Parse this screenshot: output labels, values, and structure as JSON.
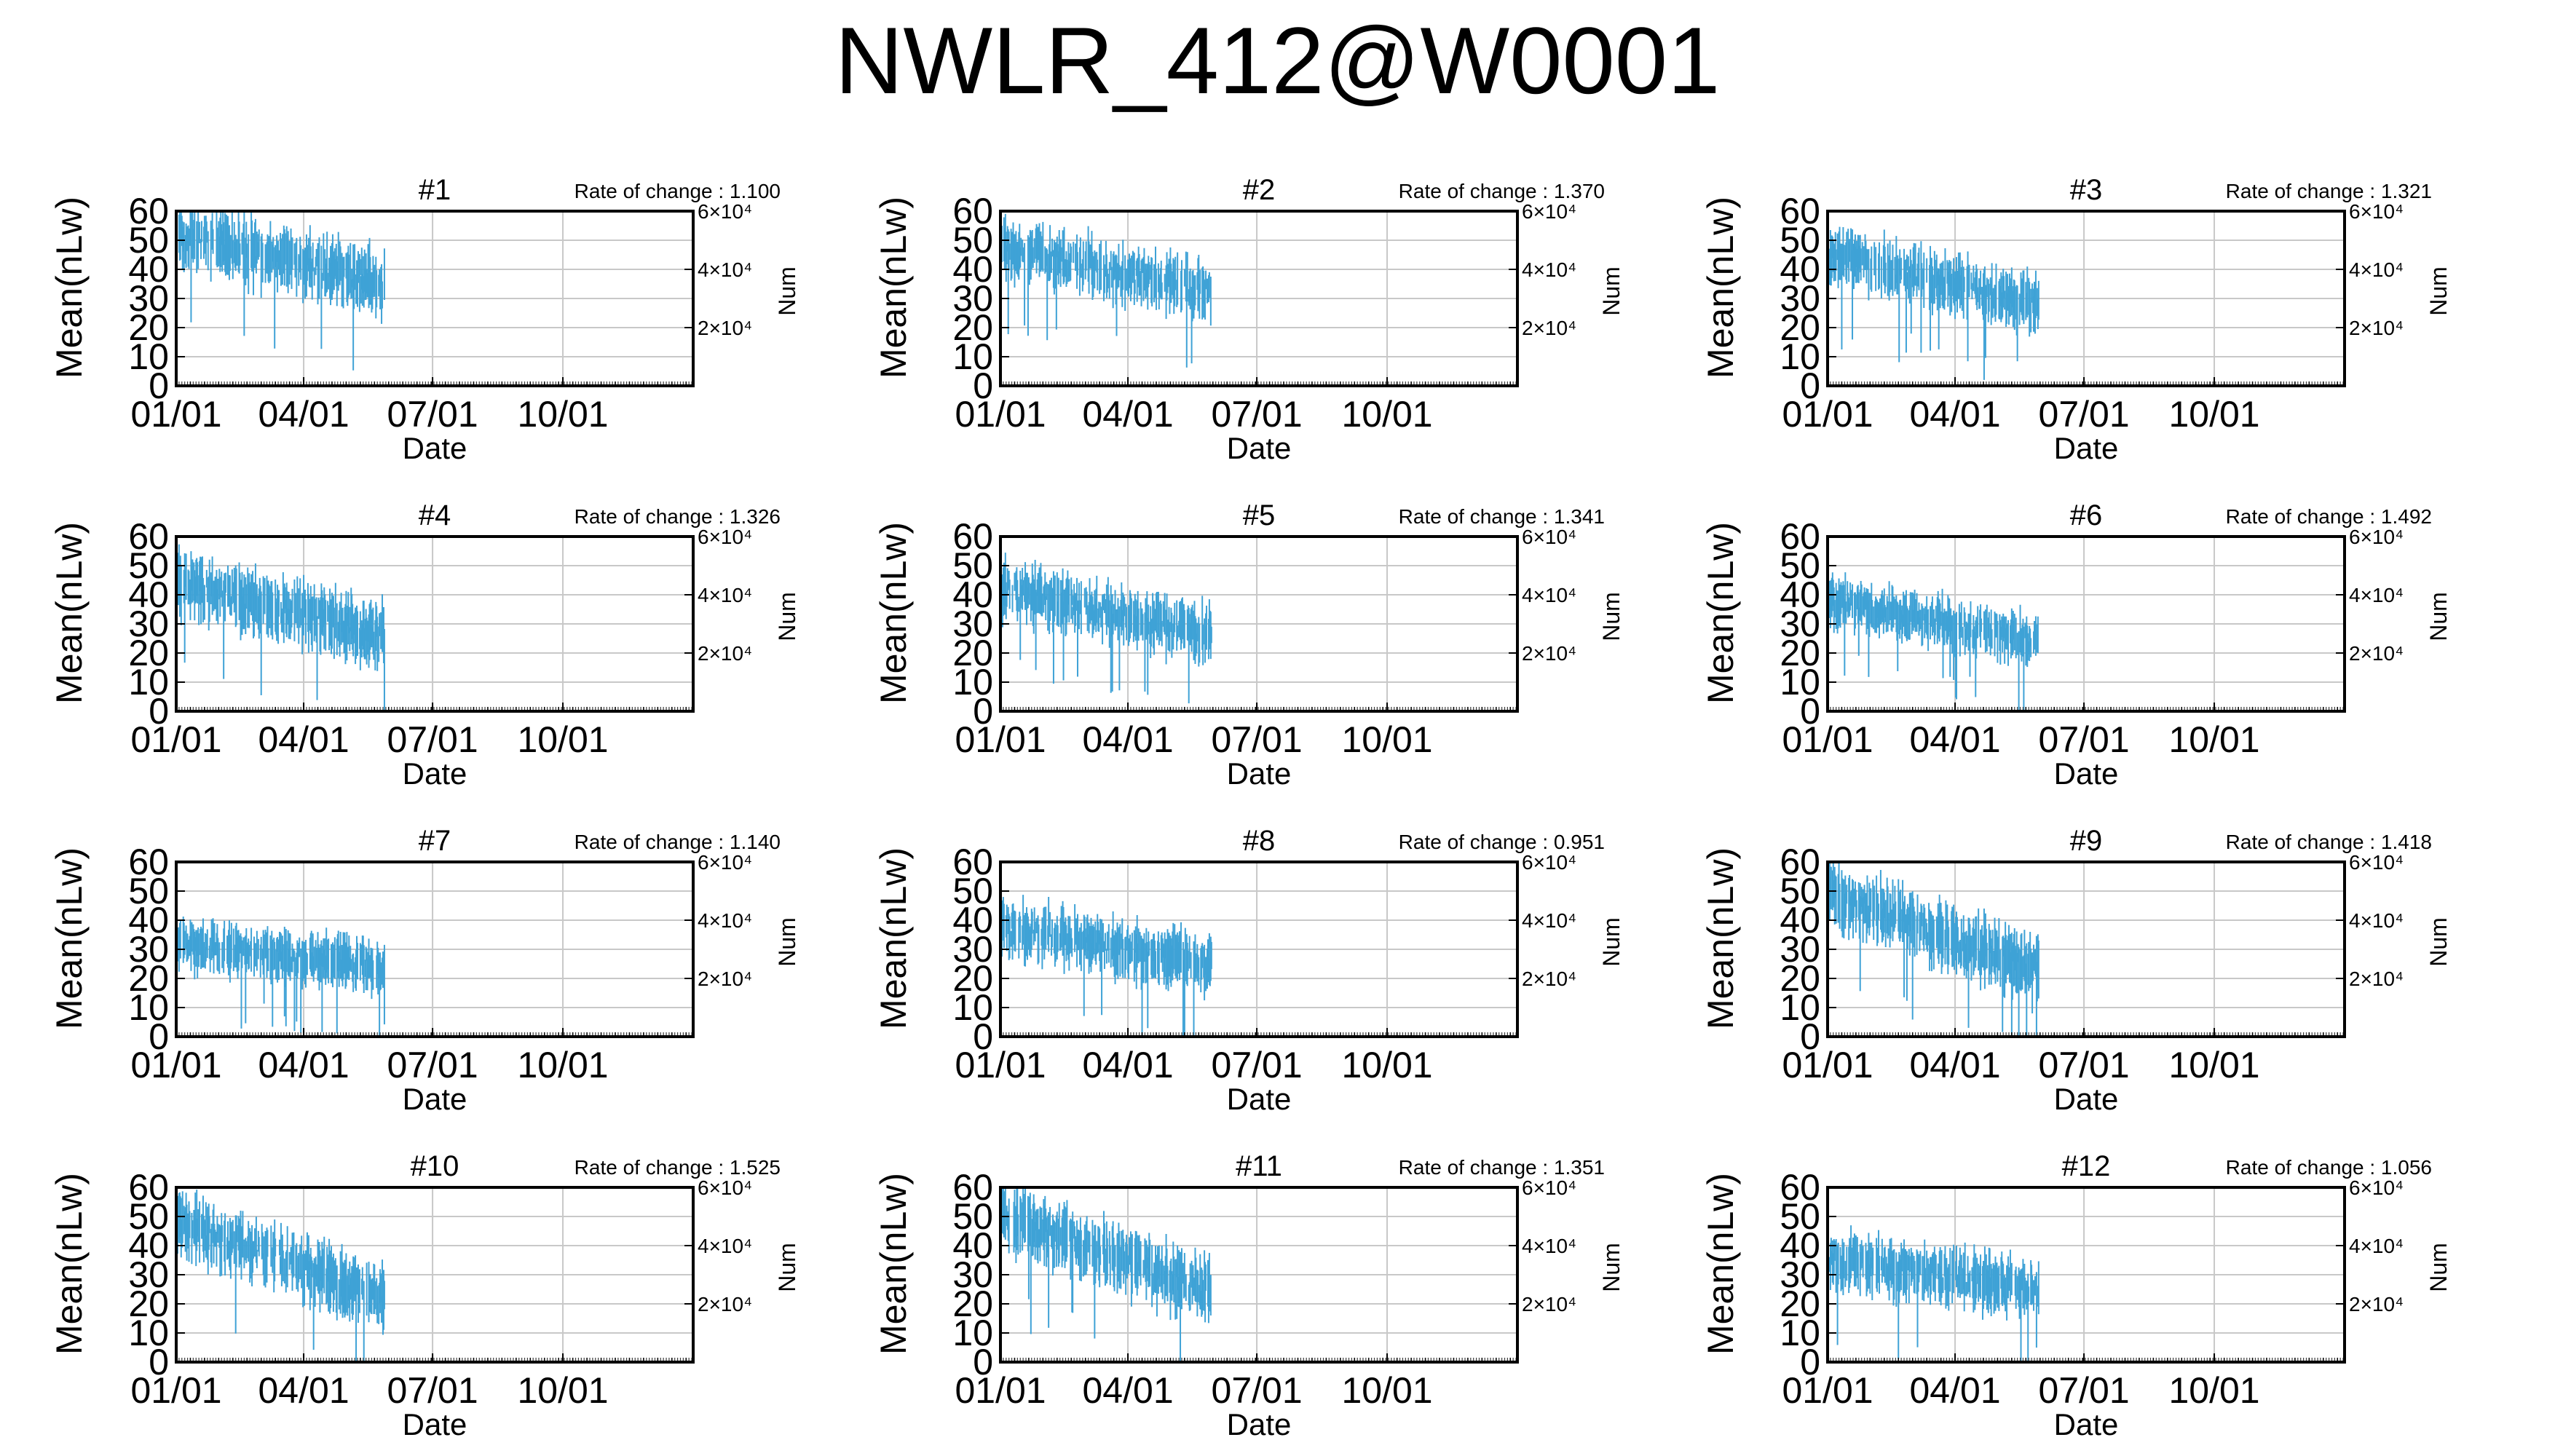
{
  "title": "NWLR_412@W0001",
  "shared": {
    "ylabel": "Mean(nLw)",
    "xlabel": "Date",
    "y2label": "Num",
    "yticks": [
      "0",
      "10",
      "20",
      "30",
      "40",
      "50",
      "60"
    ],
    "xticks": [
      "01/01",
      "04/01",
      "07/01",
      "10/01"
    ],
    "y2ticks": [
      {
        "value": 20000,
        "label": "2×10⁴"
      },
      {
        "value": 40000,
        "label": "4×10⁴"
      },
      {
        "value": 60000,
        "label": "6×10⁴"
      }
    ],
    "rate_prefix": "Rate of change : ",
    "series_color": "#3fa2d6"
  },
  "chart_data": [
    {
      "type": "line",
      "title": "#1",
      "rate": "1.100",
      "xlabel": "Date",
      "ylabel": "Mean(nLw)",
      "y2label": "Num",
      "x_range": [
        "01/01",
        "12/31"
      ],
      "ylim": [
        0,
        60
      ],
      "y2lim": [
        0,
        60000
      ],
      "data_x_range": [
        "01/01",
        "05/28"
      ],
      "level_start": 52,
      "level_end": 35,
      "spread": 9
    },
    {
      "type": "line",
      "title": "#2",
      "rate": "1.370",
      "xlabel": "Date",
      "ylabel": "Mean(nLw)",
      "y2label": "Num",
      "x_range": [
        "01/01",
        "12/31"
      ],
      "ylim": [
        0,
        60
      ],
      "y2lim": [
        0,
        60000
      ],
      "data_x_range": [
        "01/01",
        "05/30"
      ],
      "level_start": 48,
      "level_end": 32,
      "spread": 8
    },
    {
      "type": "line",
      "title": "#3",
      "rate": "1.321",
      "xlabel": "Date",
      "ylabel": "Mean(nLw)",
      "y2label": "Num",
      "x_range": [
        "01/01",
        "12/31"
      ],
      "ylim": [
        0,
        60
      ],
      "y2lim": [
        0,
        60000
      ],
      "data_x_range": [
        "01/01",
        "05/30"
      ],
      "level_start": 45,
      "level_end": 28,
      "spread": 8
    },
    {
      "type": "line",
      "title": "#4",
      "rate": "1.326",
      "xlabel": "Date",
      "ylabel": "Mean(nLw)",
      "y2label": "Num",
      "x_range": [
        "01/01",
        "12/31"
      ],
      "ylim": [
        0,
        60
      ],
      "y2lim": [
        0,
        60000
      ],
      "data_x_range": [
        "01/01",
        "05/28"
      ],
      "level_start": 44,
      "level_end": 26,
      "spread": 9
    },
    {
      "type": "line",
      "title": "#5",
      "rate": "1.341",
      "xlabel": "Date",
      "ylabel": "Mean(nLw)",
      "y2label": "Num",
      "x_range": [
        "01/01",
        "12/31"
      ],
      "ylim": [
        0,
        60
      ],
      "y2lim": [
        0,
        60000
      ],
      "data_x_range": [
        "01/01",
        "05/30"
      ],
      "level_start": 42,
      "level_end": 26,
      "spread": 8
    },
    {
      "type": "line",
      "title": "#6",
      "rate": "1.492",
      "xlabel": "Date",
      "ylabel": "Mean(nLw)",
      "y2label": "Num",
      "x_range": [
        "01/01",
        "12/31"
      ],
      "ylim": [
        0,
        60
      ],
      "y2lim": [
        0,
        60000
      ],
      "data_x_range": [
        "01/01",
        "05/30"
      ],
      "level_start": 38,
      "level_end": 24,
      "spread": 7
    },
    {
      "type": "line",
      "title": "#7",
      "rate": "1.140",
      "xlabel": "Date",
      "ylabel": "Mean(nLw)",
      "y2label": "Num",
      "x_range": [
        "01/01",
        "12/31"
      ],
      "ylim": [
        0,
        60
      ],
      "y2lim": [
        0,
        60000
      ],
      "data_x_range": [
        "01/01",
        "05/28"
      ],
      "level_start": 32,
      "level_end": 24,
      "spread": 7
    },
    {
      "type": "line",
      "title": "#8",
      "rate": "0.951",
      "xlabel": "Date",
      "ylabel": "Mean(nLw)",
      "y2label": "Num",
      "x_range": [
        "01/01",
        "12/31"
      ],
      "ylim": [
        0,
        60
      ],
      "y2lim": [
        0,
        60000
      ],
      "data_x_range": [
        "01/01",
        "05/30"
      ],
      "level_start": 38,
      "level_end": 25,
      "spread": 8
    },
    {
      "type": "line",
      "title": "#9",
      "rate": "1.418",
      "xlabel": "Date",
      "ylabel": "Mean(nLw)",
      "y2label": "Num",
      "x_range": [
        "01/01",
        "12/31"
      ],
      "ylim": [
        0,
        60
      ],
      "y2lim": [
        0,
        60000
      ],
      "data_x_range": [
        "01/01",
        "05/30"
      ],
      "level_start": 50,
      "level_end": 22,
      "spread": 9
    },
    {
      "type": "line",
      "title": "#10",
      "rate": "1.525",
      "xlabel": "Date",
      "ylabel": "Mean(nLw)",
      "y2label": "Num",
      "x_range": [
        "01/01",
        "12/31"
      ],
      "ylim": [
        0,
        60
      ],
      "y2lim": [
        0,
        60000
      ],
      "data_x_range": [
        "01/01",
        "05/28"
      ],
      "level_start": 48,
      "level_end": 22,
      "spread": 9
    },
    {
      "type": "line",
      "title": "#11",
      "rate": "1.351",
      "xlabel": "Date",
      "ylabel": "Mean(nLw)",
      "y2label": "Num",
      "x_range": [
        "01/01",
        "12/31"
      ],
      "ylim": [
        0,
        60
      ],
      "y2lim": [
        0,
        60000
      ],
      "data_x_range": [
        "01/01",
        "05/30"
      ],
      "level_start": 50,
      "level_end": 24,
      "spread": 9
    },
    {
      "type": "line",
      "title": "#12",
      "rate": "1.056",
      "xlabel": "Date",
      "ylabel": "Mean(nLw)",
      "y2label": "Num",
      "x_range": [
        "01/01",
        "12/31"
      ],
      "ylim": [
        0,
        60
      ],
      "y2lim": [
        0,
        60000
      ],
      "data_x_range": [
        "01/01",
        "05/30"
      ],
      "level_start": 35,
      "level_end": 25,
      "spread": 8
    }
  ]
}
